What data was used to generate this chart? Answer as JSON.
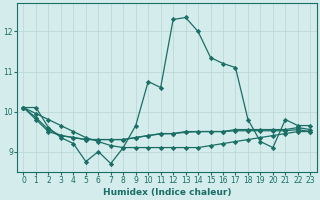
{
  "xlabel": "Humidex (Indice chaleur)",
  "bg_color": "#d4ecec",
  "line_color": "#1a6e66",
  "grid_color": "#b8d4d4",
  "x_values": [
    0,
    1,
    2,
    3,
    4,
    5,
    6,
    7,
    8,
    9,
    10,
    11,
    12,
    13,
    14,
    15,
    16,
    17,
    18,
    19,
    20,
    21,
    22,
    23
  ],
  "series": [
    [
      10.1,
      10.1,
      9.6,
      9.35,
      9.2,
      8.75,
      9.0,
      8.7,
      9.1,
      9.65,
      10.75,
      10.6,
      12.3,
      12.35,
      12.0,
      11.35,
      11.2,
      11.1,
      9.8,
      9.25,
      9.1,
      9.8,
      9.65,
      9.65
    ],
    [
      10.1,
      9.95,
      9.8,
      9.65,
      9.5,
      9.35,
      9.25,
      9.15,
      9.1,
      9.1,
      9.1,
      9.1,
      9.1,
      9.1,
      9.1,
      9.15,
      9.2,
      9.25,
      9.3,
      9.35,
      9.4,
      9.45,
      9.5,
      9.5
    ],
    [
      10.1,
      9.85,
      9.55,
      9.4,
      9.35,
      9.3,
      9.3,
      9.3,
      9.3,
      9.35,
      9.4,
      9.45,
      9.45,
      9.5,
      9.5,
      9.5,
      9.5,
      9.55,
      9.55,
      9.55,
      9.55,
      9.55,
      9.6,
      9.55
    ],
    [
      10.1,
      9.8,
      9.5,
      9.4,
      9.35,
      9.3,
      9.3,
      9.3,
      9.3,
      9.35,
      9.4,
      9.44,
      9.45,
      9.48,
      9.5,
      9.5,
      9.5,
      9.52,
      9.52,
      9.52,
      9.52,
      9.52,
      9.55,
      9.5
    ]
  ],
  "xlim": [
    -0.5,
    23.5
  ],
  "ylim": [
    8.5,
    12.7
  ],
  "yticks": [
    9,
    10,
    11,
    12
  ],
  "xticks": [
    0,
    1,
    2,
    3,
    4,
    5,
    6,
    7,
    8,
    9,
    10,
    11,
    12,
    13,
    14,
    15,
    16,
    17,
    18,
    19,
    20,
    21,
    22,
    23
  ],
  "marker": "D",
  "markersize": 2.2,
  "linewidth": 0.9,
  "xlabel_fontsize": 6.5,
  "tick_fontsize": 5.5
}
